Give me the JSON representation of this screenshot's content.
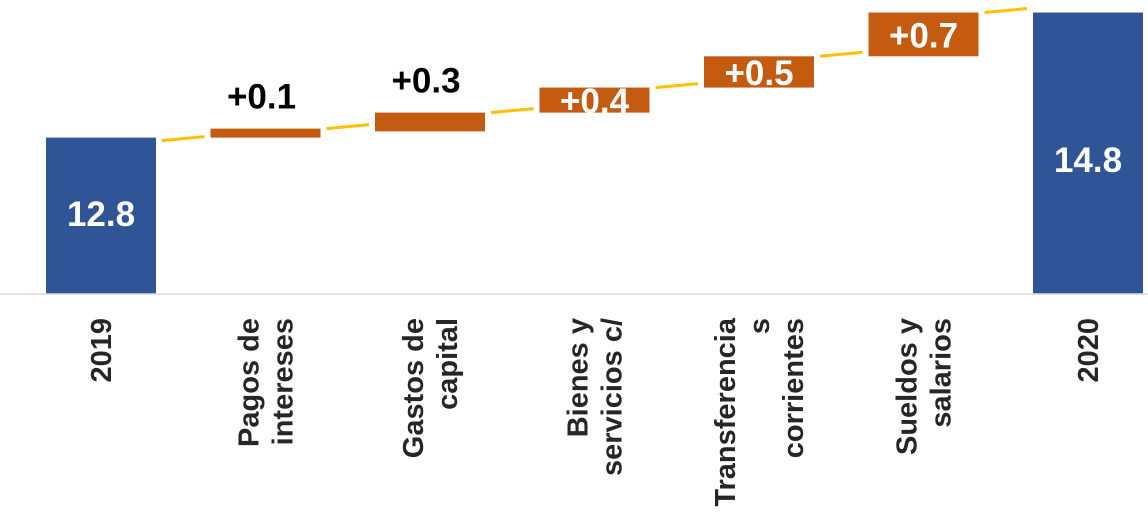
{
  "chart_data": {
    "type": "waterfall",
    "title": "",
    "xlabel": "",
    "ylabel": "",
    "categories": [
      "2019",
      "Pagos de intereses",
      "Gastos de capital",
      "Bienes y servicios c/",
      "Transferencias corrientes",
      "Sueldos y salarios",
      "2020"
    ],
    "tick_lines": [
      [
        "2019"
      ],
      [
        "Pagos de",
        "intereses"
      ],
      [
        "Gastos de",
        "capital"
      ],
      [
        "Bienes y",
        "servicios c/"
      ],
      [
        "Transferencia",
        "s",
        "corrientes"
      ],
      [
        "Sueldos y",
        "salarios"
      ],
      [
        "2020"
      ]
    ],
    "kinds": [
      "total",
      "delta",
      "delta",
      "delta",
      "delta",
      "delta",
      "total"
    ],
    "values": [
      12.8,
      0.1,
      0.3,
      0.4,
      0.5,
      0.7,
      14.8
    ],
    "data_labels": [
      "12.8",
      "+0.1",
      "+0.3",
      "+0.4",
      "+0.5",
      "+0.7",
      "14.8"
    ],
    "ylim": [
      10.3,
      15.0
    ],
    "grid": false,
    "legend": "none",
    "colors": {
      "total": "#2F5597",
      "delta": "#C55A11",
      "connector": "#FFC000",
      "axis": "#D9D9D9",
      "total_label": "#FFFFFF",
      "delta_label_above": "#000000",
      "delta_label_inside": "#FFFFFF"
    }
  }
}
